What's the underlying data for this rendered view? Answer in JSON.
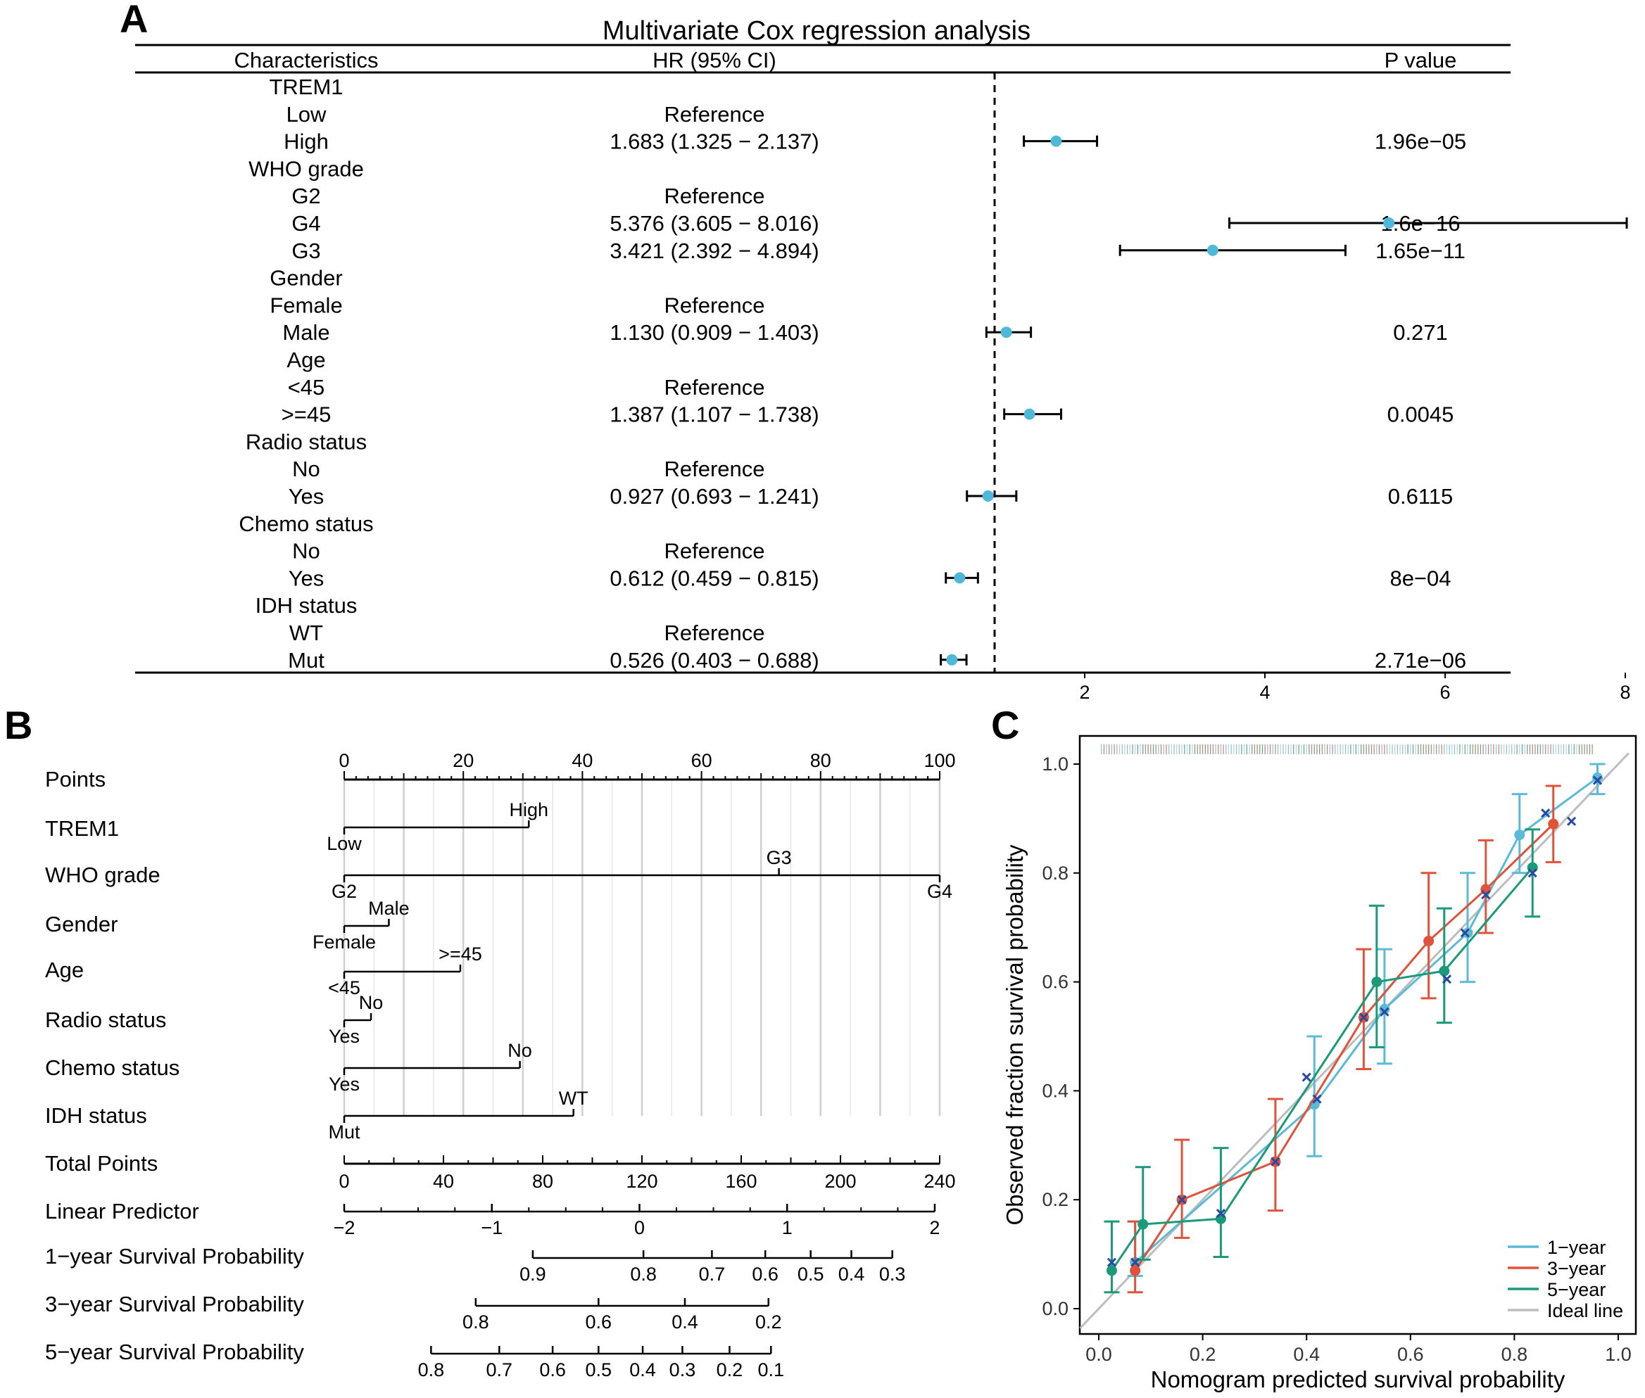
{
  "chart_data": [
    {
      "type": "forest",
      "panel": "A",
      "title": "Multivariate Cox regression analysis",
      "headers": {
        "characteristics": "Characteristics",
        "hr": "HR (95% CI)",
        "p": "P value"
      },
      "reference_line": 1,
      "xlim": [
        0.3,
        8.6
      ],
      "xticks": [
        "2",
        "4",
        "6",
        "8"
      ],
      "rows": [
        {
          "label": "TREM1",
          "group": true
        },
        {
          "label": "Low",
          "hr_text": "Reference"
        },
        {
          "label": "High",
          "hr_text": "1.683 (1.325 − 2.137)",
          "hr": 1.683,
          "lo": 1.325,
          "hi": 2.137,
          "p": "1.96e−05"
        },
        {
          "label": "WHO grade",
          "group": true
        },
        {
          "label": "G2",
          "hr_text": "Reference"
        },
        {
          "label": "G4",
          "hr_text": "5.376 (3.605 − 8.016)",
          "hr": 5.376,
          "lo": 3.605,
          "hi": 8.016,
          "p": "1.6e−16"
        },
        {
          "label": "G3",
          "hr_text": "3.421 (2.392 − 4.894)",
          "hr": 3.421,
          "lo": 2.392,
          "hi": 4.894,
          "p": "1.65e−11"
        },
        {
          "label": "Gender",
          "group": true
        },
        {
          "label": "Female",
          "hr_text": "Reference"
        },
        {
          "label": "Male",
          "hr_text": "1.130 (0.909 − 1.403)",
          "hr": 1.13,
          "lo": 0.909,
          "hi": 1.403,
          "p": "0.271"
        },
        {
          "label": "Age",
          "group": true
        },
        {
          "label": "<45",
          "hr_text": "Reference"
        },
        {
          "label": ">=45",
          "hr_text": "1.387 (1.107 − 1.738)",
          "hr": 1.387,
          "lo": 1.107,
          "hi": 1.738,
          "p": "0.0045"
        },
        {
          "label": "Radio status",
          "group": true
        },
        {
          "label": "No",
          "hr_text": "Reference"
        },
        {
          "label": "Yes",
          "hr_text": "0.927 (0.693 − 1.241)",
          "hr": 0.927,
          "lo": 0.693,
          "hi": 1.241,
          "p": "0.6115"
        },
        {
          "label": "Chemo status",
          "group": true
        },
        {
          "label": "No",
          "hr_text": "Reference"
        },
        {
          "label": "Yes",
          "hr_text": "0.612 (0.459 − 0.815)",
          "hr": 0.612,
          "lo": 0.459,
          "hi": 0.815,
          "p": "8e−04"
        },
        {
          "label": "IDH status",
          "group": true
        },
        {
          "label": "WT",
          "hr_text": "Reference"
        },
        {
          "label": "Mut",
          "hr_text": "0.526 (0.403 − 0.688)",
          "hr": 0.526,
          "lo": 0.403,
          "hi": 0.688,
          "p": "2.71e−06"
        }
      ],
      "colors": {
        "point": "#4fb8d9",
        "line": "#000000"
      }
    },
    {
      "type": "nomogram",
      "panel": "B",
      "points_range": [
        0,
        100
      ],
      "rows": [
        {
          "label": "Points",
          "kind": "axis",
          "min": 0,
          "max": 100,
          "ticks": [
            "0",
            "20",
            "40",
            "60",
            "80",
            "100"
          ],
          "tick_values": [
            0,
            20,
            40,
            60,
            80,
            100
          ],
          "minor_step": 2,
          "mid_step": 10
        },
        {
          "label": "TREM1",
          "kind": "factor",
          "levels": [
            {
              "name": "Low",
              "points": 0,
              "side": "below"
            },
            {
              "name": "High",
              "points": 31,
              "side": "above"
            }
          ]
        },
        {
          "label": "WHO grade",
          "kind": "factor",
          "levels": [
            {
              "name": "G2",
              "points": 0,
              "side": "below"
            },
            {
              "name": "G3",
              "points": 73,
              "side": "above"
            },
            {
              "name": "G4",
              "points": 100,
              "side": "below"
            }
          ]
        },
        {
          "label": "Gender",
          "kind": "factor",
          "levels": [
            {
              "name": "Female",
              "points": 0,
              "side": "below"
            },
            {
              "name": "Male",
              "points": 7.5,
              "side": "above"
            }
          ]
        },
        {
          "label": "Age",
          "kind": "factor",
          "levels": [
            {
              "name": "<45",
              "points": 0,
              "side": "below"
            },
            {
              "name": ">=45",
              "points": 19.5,
              "side": "above"
            }
          ]
        },
        {
          "label": "Radio status",
          "kind": "factor",
          "levels": [
            {
              "name": "Yes",
              "points": 0,
              "side": "below"
            },
            {
              "name": "No",
              "points": 4.5,
              "side": "above"
            }
          ]
        },
        {
          "label": "Chemo status",
          "kind": "factor",
          "levels": [
            {
              "name": "Yes",
              "points": 0,
              "side": "below"
            },
            {
              "name": "No",
              "points": 29.5,
              "side": "above"
            }
          ]
        },
        {
          "label": "IDH status",
          "kind": "factor",
          "levels": [
            {
              "name": "Mut",
              "points": 0,
              "side": "below"
            },
            {
              "name": "WT",
              "points": 38.5,
              "side": "above"
            }
          ]
        },
        {
          "label": "Total Points",
          "kind": "axis",
          "min": 0,
          "max": 240,
          "ticks": [
            "0",
            "40",
            "80",
            "120",
            "160",
            "200",
            "240"
          ],
          "tick_values": [
            0,
            40,
            80,
            120,
            160,
            200,
            240
          ],
          "minor_step": 10,
          "mid_step": 20
        },
        {
          "label": "Linear Predictor",
          "kind": "scale",
          "ticks": [
            "−2",
            "−1",
            "0",
            "1",
            "2"
          ],
          "positions": [
            0,
            59.5,
            119,
            178.5,
            238
          ],
          "minor": [
            14.9,
            29.8,
            44.6,
            74.4,
            89.3,
            104.1,
            133.9,
            148.8,
            163.6,
            193.4,
            208.3,
            223.1
          ]
        },
        {
          "label": "1−year Survival Probability",
          "kind": "scale",
          "ticks": [
            "0.9",
            "0.8",
            "0.7",
            "0.6",
            "0.5",
            "0.4",
            "0.3"
          ],
          "positions": [
            76,
            120.6,
            148.2,
            169.7,
            188,
            204.4,
            220.9
          ]
        },
        {
          "label": "3−year Survival Probability",
          "kind": "scale",
          "ticks": [
            "0.8",
            "0.6",
            "0.4",
            "0.2"
          ],
          "positions": [
            53,
            102.5,
            137.3,
            171
          ]
        },
        {
          "label": "5−year Survival Probability",
          "kind": "scale",
          "ticks": [
            "0.8",
            "0.7",
            "0.6",
            "0.5",
            "0.4",
            "0.3",
            "0.2",
            "0.1"
          ],
          "positions": [
            35,
            62.5,
            84,
            102.5,
            120.3,
            136.3,
            155.3,
            172
          ]
        }
      ]
    },
    {
      "type": "line",
      "panel": "C",
      "xlabel": "Nomogram predicted survival probability",
      "ylabel": "Observed fraction survival probability",
      "xlim": [
        -0.04,
        1.02
      ],
      "ylim": [
        -0.04,
        1.04
      ],
      "xticks": [
        "0.0",
        "0.2",
        "0.4",
        "0.6",
        "0.8",
        "1.0"
      ],
      "yticks": [
        "0.0",
        "0.2",
        "0.4",
        "0.6",
        "0.8",
        "1.0"
      ],
      "legend_position": "bottom-right",
      "ideal_line": {
        "name": "Ideal line",
        "color": "#bdbdbd"
      },
      "series": [
        {
          "name": "1−year",
          "color": "#5bbad8",
          "x": [
            0.07,
            0.415,
            0.55,
            0.71,
            0.81,
            0.96
          ],
          "y": [
            0.085,
            0.375,
            0.55,
            0.69,
            0.87,
            0.975
          ],
          "lo": [
            0.06,
            0.28,
            0.45,
            0.6,
            0.8,
            0.945
          ],
          "hi": [
            0.16,
            0.5,
            0.66,
            0.8,
            0.945,
            1.0
          ]
        },
        {
          "name": "3−year",
          "color": "#e0523a",
          "x": [
            0.07,
            0.16,
            0.34,
            0.51,
            0.635,
            0.745,
            0.875
          ],
          "y": [
            0.07,
            0.2,
            0.27,
            0.535,
            0.675,
            0.77,
            0.89
          ],
          "lo": [
            0.03,
            0.13,
            0.18,
            0.44,
            0.57,
            0.69,
            0.82
          ],
          "hi": [
            0.16,
            0.31,
            0.385,
            0.66,
            0.8,
            0.86,
            0.96
          ]
        },
        {
          "name": "5−year",
          "color": "#1b9a7a",
          "x": [
            0.025,
            0.085,
            0.235,
            0.535,
            0.665,
            0.835
          ],
          "y": [
            0.07,
            0.155,
            0.165,
            0.6,
            0.62,
            0.81
          ],
          "lo": [
            0.03,
            0.09,
            0.095,
            0.48,
            0.525,
            0.72
          ],
          "hi": [
            0.16,
            0.26,
            0.295,
            0.74,
            0.735,
            0.88
          ]
        }
      ],
      "x_markers": [
        [
          0.025,
          0.085
        ],
        [
          0.07,
          0.085
        ],
        [
          0.16,
          0.2
        ],
        [
          0.235,
          0.175
        ],
        [
          0.34,
          0.27
        ],
        [
          0.4,
          0.425
        ],
        [
          0.42,
          0.385
        ],
        [
          0.51,
          0.535
        ],
        [
          0.55,
          0.545
        ],
        [
          0.67,
          0.605
        ],
        [
          0.705,
          0.69
        ],
        [
          0.745,
          0.76
        ],
        [
          0.835,
          0.8
        ],
        [
          0.86,
          0.91
        ],
        [
          0.91,
          0.895
        ],
        [
          0.96,
          0.97
        ]
      ],
      "x_marker_color": "#2a4aa0"
    }
  ]
}
